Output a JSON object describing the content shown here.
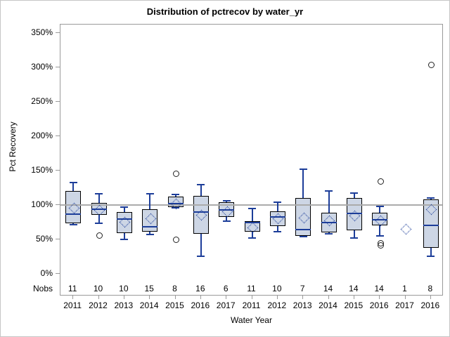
{
  "title": "Distribution of pctrecov by water_yr",
  "y_axis": {
    "label": "Pct Recovery",
    "tick_labels": [
      "0%",
      "50%",
      "100%",
      "150%",
      "200%",
      "250%",
      "300%",
      "350%"
    ],
    "tick_values": [
      0,
      50,
      100,
      150,
      200,
      250,
      300,
      350
    ]
  },
  "x_axis": {
    "label": "Water Year",
    "categories": [
      "2011",
      "2012",
      "2013",
      "2014",
      "2015",
      "2016",
      "2017",
      "2011",
      "2012",
      "2013",
      "2014",
      "2015",
      "2016",
      "2017",
      "2016"
    ]
  },
  "nobs_label": "Nobs",
  "colors": {
    "box_fill": "#cdd6e5",
    "box_border": "#000000",
    "whisker": "#1c3d99",
    "median": "#1c3d99",
    "mean_marker": "#1c3d99",
    "reference_line": "#ababab",
    "frame": "#9a9a9a",
    "outlier": "#222222"
  },
  "chart_data": {
    "type": "box",
    "title": "Distribution of pctrecov by water_yr",
    "xlabel": "Water Year",
    "ylabel": "Pct Recovery",
    "ylim": [
      0,
      350
    ],
    "reference_line_y": 100,
    "grid": false,
    "categories": [
      "2011",
      "2012",
      "2013",
      "2014",
      "2015",
      "2016",
      "2017",
      "2011",
      "2012",
      "2013",
      "2014",
      "2015",
      "2016",
      "2017",
      "2016"
    ],
    "nobs": [
      11,
      10,
      10,
      15,
      8,
      16,
      6,
      11,
      10,
      7,
      14,
      14,
      14,
      1,
      8
    ],
    "boxes": [
      {
        "category": "2011",
        "nobs": 11,
        "whisker_low": 71,
        "q1": 73,
        "median": 87,
        "q3": 120,
        "whisker_high": 133,
        "mean": 96,
        "outliers": []
      },
      {
        "category": "2012",
        "nobs": 10,
        "whisker_low": 73,
        "q1": 86,
        "median": 94,
        "q3": 103,
        "whisker_high": 116,
        "mean": 93,
        "outliers": [
          57
        ]
      },
      {
        "category": "2013",
        "nobs": 10,
        "whisker_low": 50,
        "q1": 59,
        "median": 80,
        "q3": 90,
        "whisker_high": 97,
        "mean": 76,
        "outliers": []
      },
      {
        "category": "2014",
        "nobs": 15,
        "whisker_low": 57,
        "q1": 61,
        "median": 68,
        "q3": 94,
        "whisker_high": 116,
        "mean": 81,
        "outliers": []
      },
      {
        "category": "2015",
        "nobs": 8,
        "whisker_low": 96,
        "q1": 97,
        "median": 102,
        "q3": 112,
        "whisker_high": 115,
        "mean": 103,
        "outliers": [
          146,
          51
        ]
      },
      {
        "category": "2016",
        "nobs": 16,
        "whisker_low": 26,
        "q1": 58,
        "median": 90,
        "q3": 113,
        "whisker_high": 130,
        "mean": 86,
        "outliers": []
      },
      {
        "category": "2017",
        "nobs": 6,
        "whisker_low": 77,
        "q1": 83,
        "median": 93,
        "q3": 104,
        "whisker_high": 106,
        "mean": 91,
        "outliers": []
      },
      {
        "category": "2011",
        "nobs": 11,
        "whisker_low": 52,
        "q1": 61,
        "median": 74,
        "q3": 77,
        "whisker_high": 95,
        "mean": 68,
        "outliers": []
      },
      {
        "category": "2012",
        "nobs": 10,
        "whisker_low": 61,
        "q1": 69,
        "median": 83,
        "q3": 91,
        "whisker_high": 104,
        "mean": 81,
        "outliers": []
      },
      {
        "category": "2013",
        "nobs": 7,
        "whisker_low": 54,
        "q1": 55,
        "median": 64,
        "q3": 110,
        "whisker_high": 152,
        "mean": 82,
        "outliers": []
      },
      {
        "category": "2014",
        "nobs": 14,
        "whisker_low": 58,
        "q1": 60,
        "median": 74,
        "q3": 89,
        "whisker_high": 120,
        "mean": 78,
        "outliers": []
      },
      {
        "category": "2015",
        "nobs": 14,
        "whisker_low": 52,
        "q1": 63,
        "median": 88,
        "q3": 110,
        "whisker_high": 117,
        "mean": 85,
        "outliers": []
      },
      {
        "category": "2016",
        "nobs": 14,
        "whisker_low": 55,
        "q1": 70,
        "median": 79,
        "q3": 89,
        "whisker_high": 98,
        "mean": 78,
        "outliers": [
          135,
          45,
          42
        ]
      },
      {
        "category": "2017",
        "nobs": 1,
        "whisker_low": 66,
        "q1": 66,
        "median": 66,
        "q3": 66,
        "whisker_high": 66,
        "mean": 66,
        "outliers": []
      },
      {
        "category": "2016",
        "nobs": 8,
        "whisker_low": 26,
        "q1": 38,
        "median": 70,
        "q3": 108,
        "whisker_high": 110,
        "mean": 94,
        "outliers": [
          305
        ]
      }
    ]
  }
}
